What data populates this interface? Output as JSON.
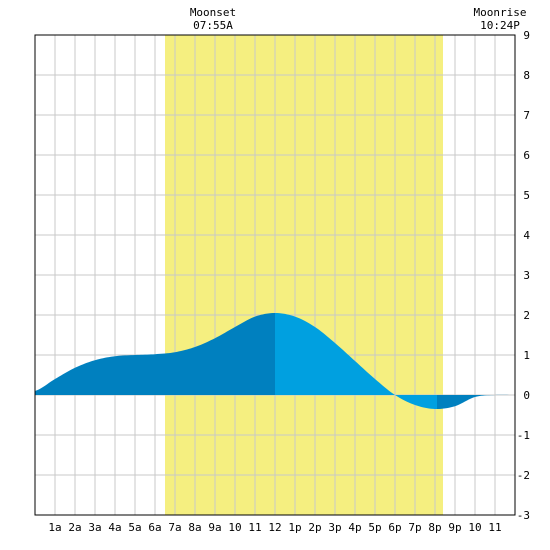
{
  "chart_data": {
    "type": "area",
    "title": "",
    "xlabel": "",
    "ylabel": "",
    "x_tick_labels": [
      "1a",
      "2a",
      "3a",
      "4a",
      "5a",
      "6a",
      "7a",
      "8a",
      "9a",
      "10",
      "11",
      "12",
      "1p",
      "2p",
      "3p",
      "4p",
      "5p",
      "6p",
      "7p",
      "8p",
      "9p",
      "10",
      "11"
    ],
    "xlim_hours": [
      0,
      24
    ],
    "ylim": [
      -3,
      9
    ],
    "y_ticks": [
      9,
      8,
      7,
      6,
      5,
      4,
      3,
      2,
      1,
      0,
      -1,
      -2,
      -3
    ],
    "grid": true,
    "tide": {
      "x_hours": [
        0,
        1,
        2,
        3,
        4,
        5,
        6,
        7,
        8,
        9,
        10,
        11,
        12,
        13,
        14,
        15,
        16,
        17,
        18,
        19,
        20,
        21,
        22,
        23,
        24
      ],
      "y": [
        0.1,
        0.4,
        0.68,
        0.87,
        0.97,
        1.0,
        1.02,
        1.07,
        1.2,
        1.42,
        1.7,
        1.96,
        2.05,
        1.96,
        1.7,
        1.3,
        0.85,
        0.4,
        0.0,
        -0.25,
        -0.35,
        -0.28,
        -0.05,
        0.0,
        0.0
      ]
    },
    "moon_band": {
      "start_hour": 6.5,
      "end_hour": 20.4
    },
    "series_colors": {
      "falling_or_low": "#0080bf",
      "rising": "#00a0e0",
      "moon_band": "#f5ef80",
      "grid": "#c8c8c8"
    },
    "annotations": [
      {
        "id": "moonset",
        "title": "Moonset",
        "time": "07:55A",
        "hour": 7.92
      },
      {
        "id": "moonrise",
        "title": "Moonrise",
        "time": "10:24P",
        "hour": 22.4
      }
    ]
  }
}
